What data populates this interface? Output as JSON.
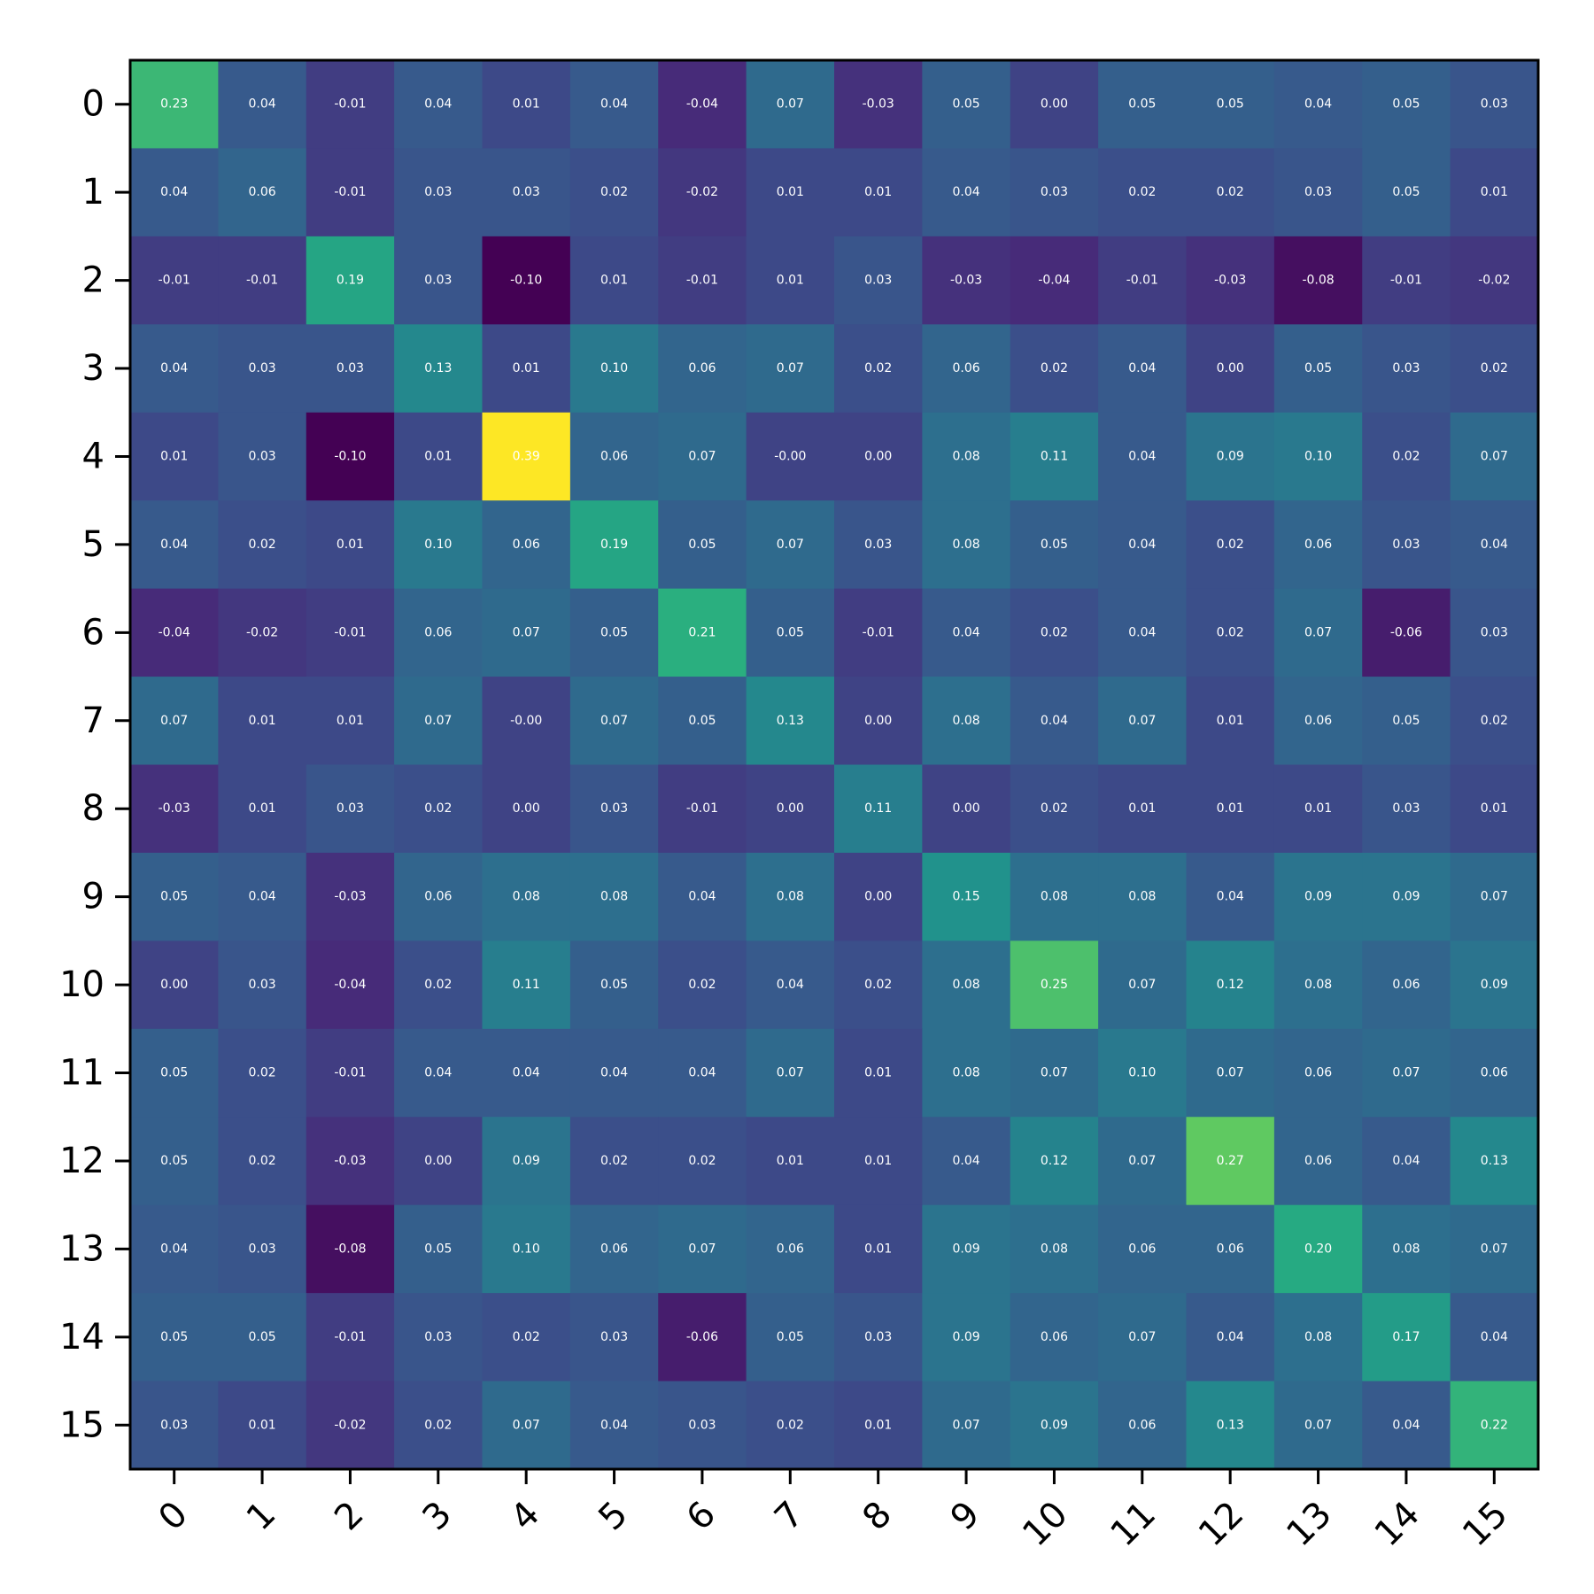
{
  "chart_data": {
    "type": "heatmap",
    "title": "",
    "xlabel": "",
    "ylabel": "",
    "colormap": "viridis",
    "color_range": [
      -0.1,
      0.39
    ],
    "x_tick_labels": [
      "0",
      "1",
      "2",
      "3",
      "4",
      "5",
      "6",
      "7",
      "8",
      "9",
      "10",
      "11",
      "12",
      "13",
      "14",
      "15"
    ],
    "y_tick_labels": [
      "0",
      "1",
      "2",
      "3",
      "4",
      "5",
      "6",
      "7",
      "8",
      "9",
      "10",
      "11",
      "12",
      "13",
      "14",
      "15"
    ],
    "x_tick_rotation": "45 degrees",
    "values": [
      [
        0.23,
        0.04,
        -0.01,
        0.04,
        0.01,
        0.04,
        -0.04,
        0.07,
        -0.03,
        0.05,
        0.0,
        0.05,
        0.05,
        0.04,
        0.05,
        0.03
      ],
      [
        0.04,
        0.06,
        -0.01,
        0.03,
        0.03,
        0.02,
        -0.02,
        0.01,
        0.01,
        0.04,
        0.03,
        0.02,
        0.02,
        0.03,
        0.05,
        0.01
      ],
      [
        -0.01,
        -0.01,
        0.19,
        0.03,
        -0.1,
        0.01,
        -0.01,
        0.01,
        0.03,
        -0.03,
        -0.04,
        -0.01,
        -0.03,
        -0.08,
        -0.01,
        -0.02
      ],
      [
        0.04,
        0.03,
        0.03,
        0.13,
        0.01,
        0.1,
        0.06,
        0.07,
        0.02,
        0.06,
        0.02,
        0.04,
        0.0,
        0.05,
        0.03,
        0.02
      ],
      [
        0.01,
        0.03,
        -0.1,
        0.01,
        0.39,
        0.06,
        0.07,
        -0.0,
        0.0,
        0.08,
        0.11,
        0.04,
        0.09,
        0.1,
        0.02,
        0.07
      ],
      [
        0.04,
        0.02,
        0.01,
        0.1,
        0.06,
        0.19,
        0.05,
        0.07,
        0.03,
        0.08,
        0.05,
        0.04,
        0.02,
        0.06,
        0.03,
        0.04
      ],
      [
        -0.04,
        -0.02,
        -0.01,
        0.06,
        0.07,
        0.05,
        0.21,
        0.05,
        -0.01,
        0.04,
        0.02,
        0.04,
        0.02,
        0.07,
        -0.06,
        0.03
      ],
      [
        0.07,
        0.01,
        0.01,
        0.07,
        -0.0,
        0.07,
        0.05,
        0.13,
        0.0,
        0.08,
        0.04,
        0.07,
        0.01,
        0.06,
        0.05,
        0.02
      ],
      [
        -0.03,
        0.01,
        0.03,
        0.02,
        0.0,
        0.03,
        -0.01,
        0.0,
        0.11,
        0.0,
        0.02,
        0.01,
        0.01,
        0.01,
        0.03,
        0.01
      ],
      [
        0.05,
        0.04,
        -0.03,
        0.06,
        0.08,
        0.08,
        0.04,
        0.08,
        0.0,
        0.15,
        0.08,
        0.08,
        0.04,
        0.09,
        0.09,
        0.07
      ],
      [
        0.0,
        0.03,
        -0.04,
        0.02,
        0.11,
        0.05,
        0.02,
        0.04,
        0.02,
        0.08,
        0.25,
        0.07,
        0.12,
        0.08,
        0.06,
        0.09
      ],
      [
        0.05,
        0.02,
        -0.01,
        0.04,
        0.04,
        0.04,
        0.04,
        0.07,
        0.01,
        0.08,
        0.07,
        0.1,
        0.07,
        0.06,
        0.07,
        0.06
      ],
      [
        0.05,
        0.02,
        -0.03,
        0.0,
        0.09,
        0.02,
        0.02,
        0.01,
        0.01,
        0.04,
        0.12,
        0.07,
        0.27,
        0.06,
        0.04,
        0.13
      ],
      [
        0.04,
        0.03,
        -0.08,
        0.05,
        0.1,
        0.06,
        0.07,
        0.06,
        0.01,
        0.09,
        0.08,
        0.06,
        0.06,
        0.2,
        0.08,
        0.07
      ],
      [
        0.05,
        0.05,
        -0.01,
        0.03,
        0.02,
        0.03,
        -0.06,
        0.05,
        0.03,
        0.09,
        0.06,
        0.07,
        0.04,
        0.08,
        0.17,
        0.04
      ],
      [
        0.03,
        0.01,
        -0.02,
        0.02,
        0.07,
        0.04,
        0.03,
        0.02,
        0.01,
        0.07,
        0.09,
        0.06,
        0.13,
        0.07,
        0.04,
        0.22
      ]
    ],
    "cell_labels": [
      [
        "0.23",
        "0.04",
        "-0.01",
        "0.04",
        "0.01",
        "0.04",
        "-0.04",
        "0.07",
        "-0.03",
        "0.05",
        "0.00",
        "0.05",
        "0.05",
        "0.04",
        "0.05",
        "0.03"
      ],
      [
        "0.04",
        "0.06",
        "-0.01",
        "0.03",
        "0.03",
        "0.02",
        "-0.02",
        "0.01",
        "0.01",
        "0.04",
        "0.03",
        "0.02",
        "0.02",
        "0.03",
        "0.05",
        "0.01"
      ],
      [
        "-0.01",
        "-0.01",
        "0.19",
        "0.03",
        "-0.10",
        "0.01",
        "-0.01",
        "0.01",
        "0.03",
        "-0.03",
        "-0.04",
        "-0.01",
        "-0.03",
        "-0.08",
        "-0.01",
        "-0.02"
      ],
      [
        "0.04",
        "0.03",
        "0.03",
        "0.13",
        "0.01",
        "0.10",
        "0.06",
        "0.07",
        "0.02",
        "0.06",
        "0.02",
        "0.04",
        "0.00",
        "0.05",
        "0.03",
        "0.02"
      ],
      [
        "0.01",
        "0.03",
        "-0.10",
        "0.01",
        "0.39",
        "0.06",
        "0.07",
        "-0.00",
        "0.00",
        "0.08",
        "0.11",
        "0.04",
        "0.09",
        "0.10",
        "0.02",
        "0.07"
      ],
      [
        "0.04",
        "0.02",
        "0.01",
        "0.10",
        "0.06",
        "0.19",
        "0.05",
        "0.07",
        "0.03",
        "0.08",
        "0.05",
        "0.04",
        "0.02",
        "0.06",
        "0.03",
        "0.04"
      ],
      [
        "-0.04",
        "-0.02",
        "-0.01",
        "0.06",
        "0.07",
        "0.05",
        "0.21",
        "0.05",
        "-0.01",
        "0.04",
        "0.02",
        "0.04",
        "0.02",
        "0.07",
        "-0.06",
        "0.03"
      ],
      [
        "0.07",
        "0.01",
        "0.01",
        "0.07",
        "-0.00",
        "0.07",
        "0.05",
        "0.13",
        "0.00",
        "0.08",
        "0.04",
        "0.07",
        "0.01",
        "0.06",
        "0.05",
        "0.02"
      ],
      [
        "-0.03",
        "0.01",
        "0.03",
        "0.02",
        "0.00",
        "0.03",
        "-0.01",
        "0.00",
        "0.11",
        "0.00",
        "0.02",
        "0.01",
        "0.01",
        "0.01",
        "0.03",
        "0.01"
      ],
      [
        "0.05",
        "0.04",
        "-0.03",
        "0.06",
        "0.08",
        "0.08",
        "0.04",
        "0.08",
        "0.00",
        "0.15",
        "0.08",
        "0.08",
        "0.04",
        "0.09",
        "0.09",
        "0.07"
      ],
      [
        "0.00",
        "0.03",
        "-0.04",
        "0.02",
        "0.11",
        "0.05",
        "0.02",
        "0.04",
        "0.02",
        "0.08",
        "0.25",
        "0.07",
        "0.12",
        "0.08",
        "0.06",
        "0.09"
      ],
      [
        "0.05",
        "0.02",
        "-0.01",
        "0.04",
        "0.04",
        "0.04",
        "0.04",
        "0.07",
        "0.01",
        "0.08",
        "0.07",
        "0.10",
        "0.07",
        "0.06",
        "0.07",
        "0.06"
      ],
      [
        "0.05",
        "0.02",
        "-0.03",
        "0.00",
        "0.09",
        "0.02",
        "0.02",
        "0.01",
        "0.01",
        "0.04",
        "0.12",
        "0.07",
        "0.27",
        "0.06",
        "0.04",
        "0.13"
      ],
      [
        "0.04",
        "0.03",
        "-0.08",
        "0.05",
        "0.10",
        "0.06",
        "0.07",
        "0.06",
        "0.01",
        "0.09",
        "0.08",
        "0.06",
        "0.06",
        "0.20",
        "0.08",
        "0.07"
      ],
      [
        "0.05",
        "0.05",
        "-0.01",
        "0.03",
        "0.02",
        "0.03",
        "-0.06",
        "0.05",
        "0.03",
        "0.09",
        "0.06",
        "0.07",
        "0.04",
        "0.08",
        "0.17",
        "0.04"
      ],
      [
        "0.03",
        "0.01",
        "-0.02",
        "0.02",
        "0.07",
        "0.04",
        "0.03",
        "0.02",
        "0.01",
        "0.07",
        "0.09",
        "0.06",
        "0.13",
        "0.07",
        "0.04",
        "0.22"
      ]
    ]
  }
}
